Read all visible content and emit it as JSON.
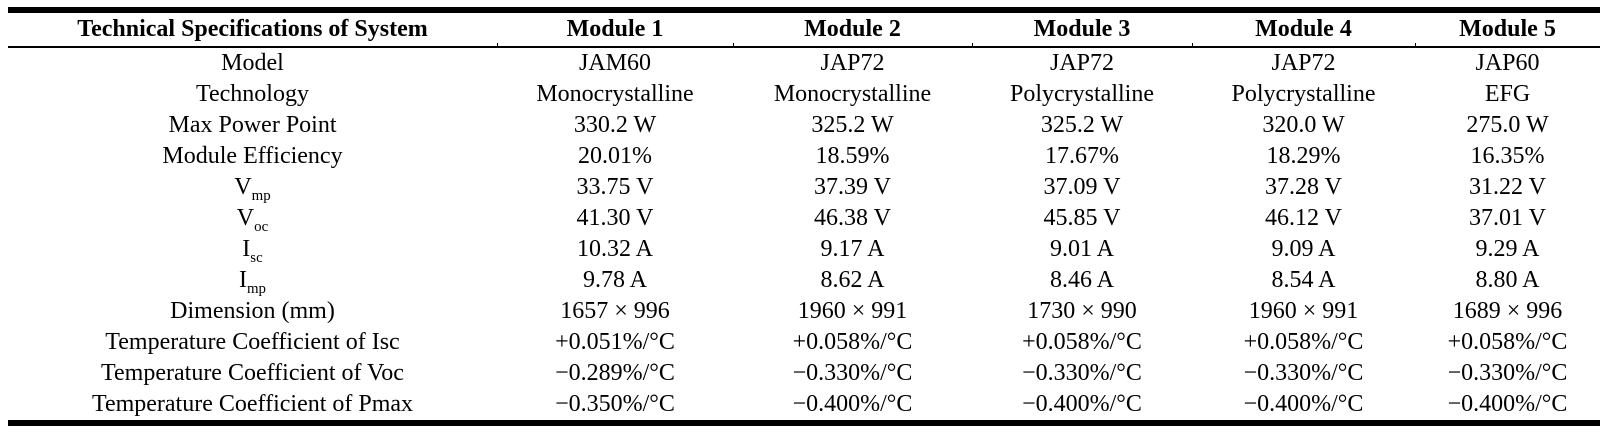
{
  "table": {
    "header": [
      "Technical Specifications of System",
      "Module 1",
      "Module 2",
      "Module 3",
      "Module 4",
      "Module 5"
    ],
    "rows": [
      {
        "label": "Model",
        "values": [
          "JAM60",
          "JAP72",
          "JAP72",
          "JAP72",
          "JAP60"
        ]
      },
      {
        "label": "Technology",
        "values": [
          "Monocrystalline",
          "Monocrystalline",
          "Polycrystalline",
          "Polycrystalline",
          "EFG"
        ]
      },
      {
        "label": "Max Power Point",
        "values": [
          "330.2 W",
          "325.2 W",
          "325.2 W",
          "320.0 W",
          "275.0 W"
        ]
      },
      {
        "label": "Module Efficiency",
        "values": [
          "20.01%",
          "18.59%",
          "17.67%",
          "18.29%",
          "16.35%"
        ]
      },
      {
        "label": "V",
        "label_sub": "mp",
        "values": [
          "33.75 V",
          "37.39 V",
          "37.09 V",
          "37.28 V",
          "31.22 V"
        ]
      },
      {
        "label": "V",
        "label_sub": "oc",
        "values": [
          "41.30 V",
          "46.38 V",
          "45.85 V",
          "46.12 V",
          "37.01 V"
        ]
      },
      {
        "label": "I",
        "label_sub": "sc",
        "values": [
          "10.32 A",
          "9.17 A",
          "9.01 A",
          "9.09 A",
          "9.29 A"
        ]
      },
      {
        "label": "I",
        "label_sub": "mp",
        "values": [
          "9.78 A",
          "8.62 A",
          "8.46 A",
          "8.54 A",
          "8.80 A"
        ]
      },
      {
        "label": "Dimension (mm)",
        "values": [
          "1657 × 996",
          "1960 × 991",
          "1730 × 990",
          "1960 × 991",
          "1689 × 996"
        ]
      },
      {
        "label": "Temperature Coefficient of Isc",
        "values": [
          "+0.051%/°C",
          "+0.058%/°C",
          "+0.058%/°C",
          "+0.058%/°C",
          "+0.058%/°C"
        ]
      },
      {
        "label": "Temperature Coefficient of Voc",
        "values": [
          "−0.289%/°C",
          "−0.330%/°C",
          "−0.330%/°C",
          "−0.330%/°C",
          "−0.330%/°C"
        ]
      },
      {
        "label": "Temperature Coefficient of Pmax",
        "values": [
          "−0.350%/°C",
          "−0.400%/°C",
          "−0.400%/°C",
          "−0.400%/°C",
          "−0.400%/°C"
        ]
      }
    ]
  },
  "colors": {
    "text": "#000000",
    "background": "#ffffff",
    "border": "#000000"
  }
}
